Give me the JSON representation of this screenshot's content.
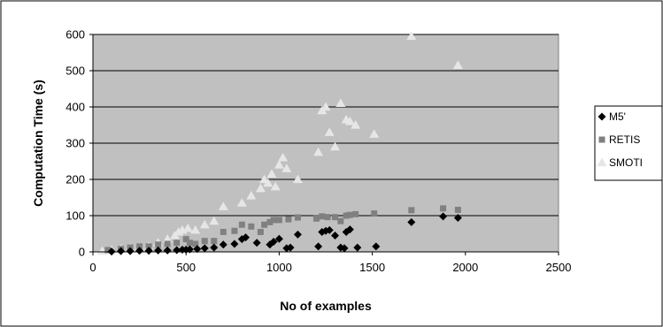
{
  "chart_data": {
    "type": "scatter",
    "xlabel": "No of examples",
    "ylabel": "Computation Time (s)",
    "xlim": [
      0,
      2500
    ],
    "ylim": [
      0,
      600
    ],
    "x_ticks": [
      "0",
      "500",
      "1000",
      "1500",
      "2000",
      "2500"
    ],
    "y_ticks": [
      "0",
      "100",
      "200",
      "300",
      "400",
      "500",
      "600"
    ],
    "grid": "horizontal",
    "legend_position": "right",
    "background": "#c0c0c0",
    "series": [
      {
        "name": "M5'",
        "marker": "diamond",
        "color": "#000000",
        "points": [
          [
            100,
            1
          ],
          [
            150,
            2
          ],
          [
            200,
            2
          ],
          [
            250,
            3
          ],
          [
            300,
            3
          ],
          [
            350,
            4
          ],
          [
            400,
            4
          ],
          [
            450,
            5
          ],
          [
            480,
            6
          ],
          [
            500,
            6
          ],
          [
            520,
            7
          ],
          [
            560,
            8
          ],
          [
            600,
            10
          ],
          [
            650,
            12
          ],
          [
            700,
            20
          ],
          [
            760,
            22
          ],
          [
            800,
            35
          ],
          [
            820,
            40
          ],
          [
            880,
            25
          ],
          [
            950,
            20
          ],
          [
            970,
            28
          ],
          [
            1000,
            36
          ],
          [
            1040,
            10
          ],
          [
            1060,
            12
          ],
          [
            1100,
            48
          ],
          [
            1210,
            15
          ],
          [
            1230,
            55
          ],
          [
            1250,
            58
          ],
          [
            1270,
            60
          ],
          [
            1300,
            45
          ],
          [
            1330,
            12
          ],
          [
            1350,
            10
          ],
          [
            1360,
            55
          ],
          [
            1380,
            62
          ],
          [
            1420,
            12
          ],
          [
            1520,
            15
          ],
          [
            1710,
            82
          ],
          [
            1880,
            98
          ],
          [
            1960,
            94
          ]
        ]
      },
      {
        "name": "RETIS",
        "marker": "square",
        "color": "#808080",
        "points": [
          [
            80,
            5
          ],
          [
            150,
            8
          ],
          [
            200,
            12
          ],
          [
            250,
            15
          ],
          [
            300,
            15
          ],
          [
            350,
            20
          ],
          [
            400,
            22
          ],
          [
            450,
            25
          ],
          [
            500,
            35
          ],
          [
            520,
            25
          ],
          [
            550,
            22
          ],
          [
            600,
            30
          ],
          [
            650,
            30
          ],
          [
            700,
            55
          ],
          [
            760,
            58
          ],
          [
            800,
            75
          ],
          [
            850,
            70
          ],
          [
            900,
            55
          ],
          [
            920,
            75
          ],
          [
            950,
            82
          ],
          [
            970,
            88
          ],
          [
            1000,
            88
          ],
          [
            1050,
            90
          ],
          [
            1100,
            95
          ],
          [
            1200,
            92
          ],
          [
            1230,
            98
          ],
          [
            1260,
            96
          ],
          [
            1300,
            96
          ],
          [
            1330,
            85
          ],
          [
            1360,
            100
          ],
          [
            1380,
            102
          ],
          [
            1410,
            104
          ],
          [
            1510,
            106
          ],
          [
            1710,
            115
          ],
          [
            1880,
            120
          ],
          [
            1960,
            116
          ]
        ]
      },
      {
        "name": "SMOTI",
        "marker": "triangle",
        "color": "#e6e6e6",
        "points": [
          [
            50,
            2
          ],
          [
            100,
            5
          ],
          [
            150,
            8
          ],
          [
            200,
            10
          ],
          [
            250,
            12
          ],
          [
            300,
            15
          ],
          [
            350,
            25
          ],
          [
            400,
            35
          ],
          [
            440,
            45
          ],
          [
            460,
            55
          ],
          [
            480,
            60
          ],
          [
            510,
            65
          ],
          [
            550,
            60
          ],
          [
            600,
            75
          ],
          [
            650,
            85
          ],
          [
            700,
            125
          ],
          [
            800,
            135
          ],
          [
            850,
            155
          ],
          [
            900,
            175
          ],
          [
            920,
            200
          ],
          [
            940,
            190
          ],
          [
            960,
            215
          ],
          [
            980,
            180
          ],
          [
            1000,
            240
          ],
          [
            1020,
            260
          ],
          [
            1040,
            230
          ],
          [
            1100,
            200
          ],
          [
            1210,
            275
          ],
          [
            1230,
            390
          ],
          [
            1250,
            400
          ],
          [
            1270,
            330
          ],
          [
            1300,
            290
          ],
          [
            1330,
            410
          ],
          [
            1360,
            365
          ],
          [
            1380,
            360
          ],
          [
            1410,
            350
          ],
          [
            1510,
            325
          ],
          [
            1710,
            595
          ],
          [
            1960,
            515
          ]
        ]
      }
    ]
  }
}
